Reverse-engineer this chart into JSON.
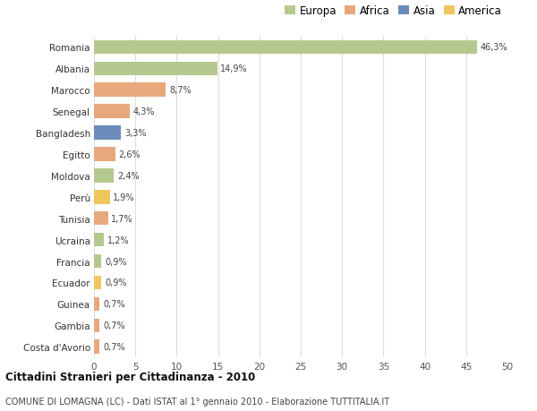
{
  "categories": [
    "Romania",
    "Albania",
    "Marocco",
    "Senegal",
    "Bangladesh",
    "Egitto",
    "Moldova",
    "Perù",
    "Tunisia",
    "Ucraina",
    "Francia",
    "Ecuador",
    "Guinea",
    "Gambia",
    "Costa d'Avorio"
  ],
  "values": [
    46.3,
    14.9,
    8.7,
    4.3,
    3.3,
    2.6,
    2.4,
    1.9,
    1.7,
    1.2,
    0.9,
    0.9,
    0.7,
    0.7,
    0.7
  ],
  "colors": [
    "#b5c98e",
    "#b5c98e",
    "#e8a87c",
    "#e8a87c",
    "#6b8cba",
    "#e8a87c",
    "#b5c98e",
    "#f0c75e",
    "#e8a87c",
    "#b5c98e",
    "#b5c98e",
    "#f0c75e",
    "#e8a87c",
    "#e8a87c",
    "#e8a87c"
  ],
  "labels": [
    "46,3%",
    "14,9%",
    "8,7%",
    "4,3%",
    "3,3%",
    "2,6%",
    "2,4%",
    "1,9%",
    "1,7%",
    "1,2%",
    "0,9%",
    "0,9%",
    "0,7%",
    "0,7%",
    "0,7%"
  ],
  "legend_labels": [
    "Europa",
    "Africa",
    "Asia",
    "America"
  ],
  "legend_colors": [
    "#b5c98e",
    "#e8a87c",
    "#6b8cba",
    "#f0c75e"
  ],
  "title": "Cittadini Stranieri per Cittadinanza - 2010",
  "subtitle": "COMUNE DI LOMAGNA (LC) - Dati ISTAT al 1° gennaio 2010 - Elaborazione TUTTITALIA.IT",
  "xlim": [
    0,
    50
  ],
  "xticks": [
    0,
    5,
    10,
    15,
    20,
    25,
    30,
    35,
    40,
    45,
    50
  ],
  "background_color": "#ffffff",
  "grid_color": "#dddddd"
}
